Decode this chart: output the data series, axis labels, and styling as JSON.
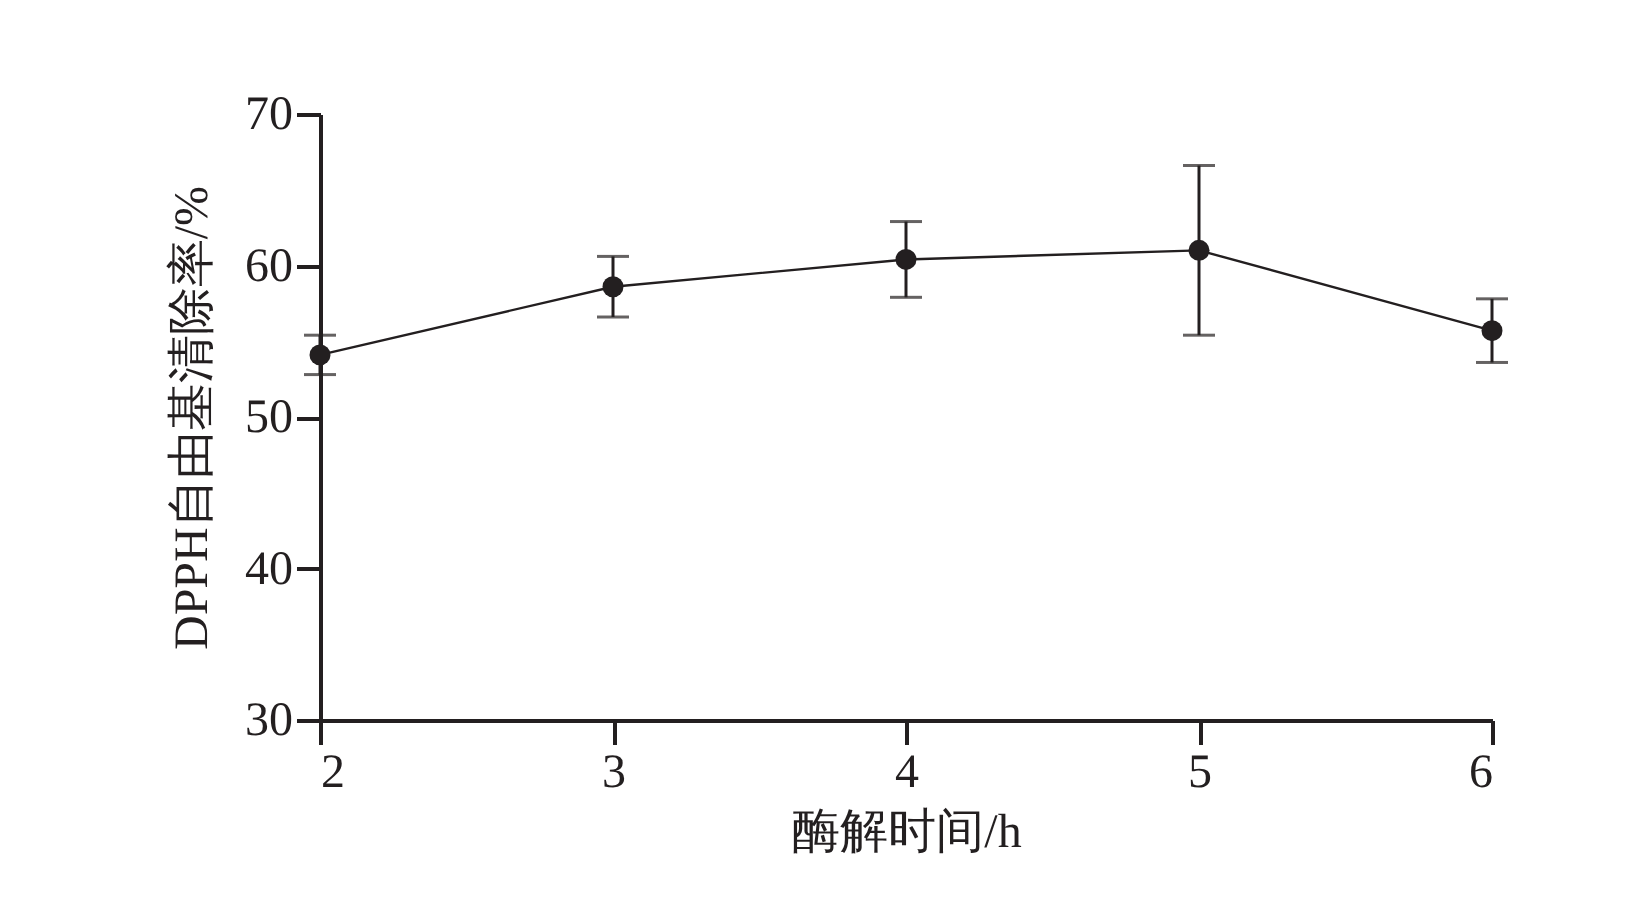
{
  "chart_data": {
    "type": "line",
    "xlabel": "酶解时间/h",
    "ylabel": "DPPH自由基清除率/%",
    "x": [
      2,
      3,
      4,
      5,
      6
    ],
    "series": [
      {
        "color": "#231f20",
        "values": [
          54.1,
          58.6,
          60.4,
          61.0,
          55.7
        ],
        "errors": [
          1.3,
          2.0,
          2.5,
          5.6,
          2.1
        ]
      }
    ],
    "xlim": [
      2,
      6
    ],
    "xticks": [
      2,
      3,
      4,
      5,
      6
    ],
    "ylim": [
      30,
      70
    ],
    "yticks": [
      30,
      40,
      50,
      60,
      70
    ],
    "grid": false,
    "legend": false,
    "marker": "circle",
    "line_style": "solid"
  }
}
